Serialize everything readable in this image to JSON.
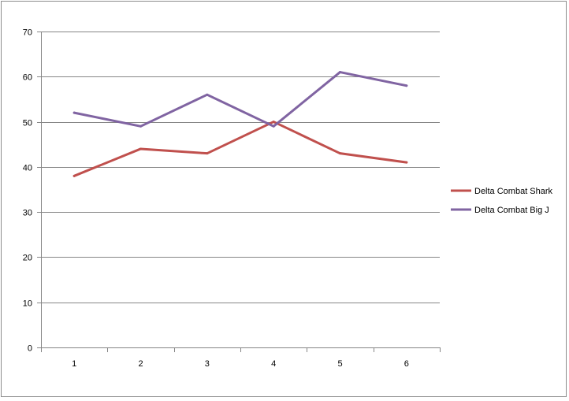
{
  "chart_data": {
    "type": "line",
    "title": "",
    "xlabel": "",
    "ylabel": "",
    "categories": [
      "1",
      "2",
      "3",
      "4",
      "5",
      "6"
    ],
    "ylim": [
      0,
      70
    ],
    "yticks": [
      0,
      10,
      20,
      30,
      40,
      50,
      60,
      70
    ],
    "grid": true,
    "legend": "right",
    "series": [
      {
        "name": "Delta Combat Shark",
        "color": "#c0504d",
        "values": [
          38,
          44,
          43,
          50,
          43,
          41
        ]
      },
      {
        "name": "Delta Combat Big J",
        "color": "#8064a2",
        "values": [
          52,
          49,
          56,
          49,
          61,
          58
        ]
      }
    ]
  }
}
